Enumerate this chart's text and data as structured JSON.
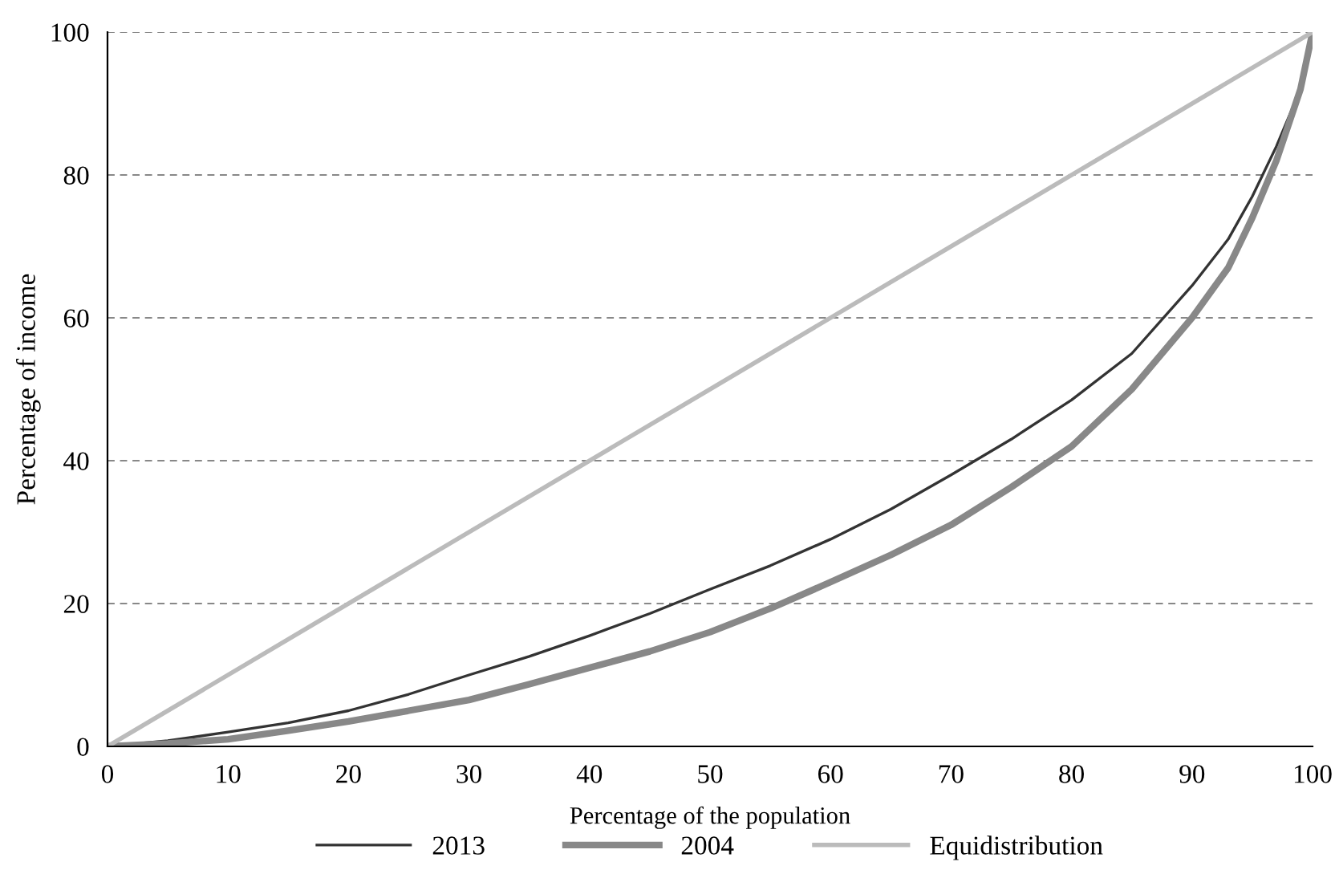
{
  "chart_data": {
    "type": "line",
    "xlabel": "Percentage of the population",
    "ylabel": "Percentage of income",
    "xlim": [
      0,
      100
    ],
    "ylim": [
      0,
      100
    ],
    "xticks": [
      0,
      10,
      20,
      30,
      40,
      50,
      60,
      70,
      80,
      90,
      100
    ],
    "yticks": [
      0,
      20,
      40,
      60,
      80,
      100
    ],
    "grid": "y",
    "legend": "bottom",
    "line_style": "solid",
    "series": [
      {
        "name": "2013",
        "color": "#333333",
        "x": [
          0,
          5,
          10,
          15,
          20,
          25,
          30,
          35,
          40,
          45,
          50,
          55,
          60,
          65,
          70,
          75,
          80,
          85,
          90,
          93,
          95,
          97,
          99,
          100
        ],
        "values": [
          0,
          0.8,
          2,
          3.3,
          5,
          7.3,
          10,
          12.6,
          15.5,
          18.6,
          22,
          25.3,
          29,
          33.2,
          38,
          43,
          48.5,
          55,
          64.5,
          71,
          77,
          84,
          92,
          100
        ]
      },
      {
        "name": "2004",
        "color": "#888888",
        "x": [
          0,
          5,
          10,
          15,
          20,
          25,
          30,
          35,
          40,
          45,
          50,
          55,
          60,
          65,
          70,
          75,
          80,
          85,
          90,
          93,
          95,
          97,
          99,
          100
        ],
        "values": [
          0,
          0.4,
          1,
          2.2,
          3.5,
          5,
          6.5,
          8.7,
          11,
          13.3,
          16,
          19.3,
          23,
          26.8,
          31,
          36.3,
          42,
          50,
          60,
          67,
          74,
          82,
          92,
          100
        ]
      },
      {
        "name": "Equidistribution",
        "color": "#bbbbbb",
        "x": [
          0,
          100
        ],
        "values": [
          0,
          100
        ]
      }
    ]
  }
}
